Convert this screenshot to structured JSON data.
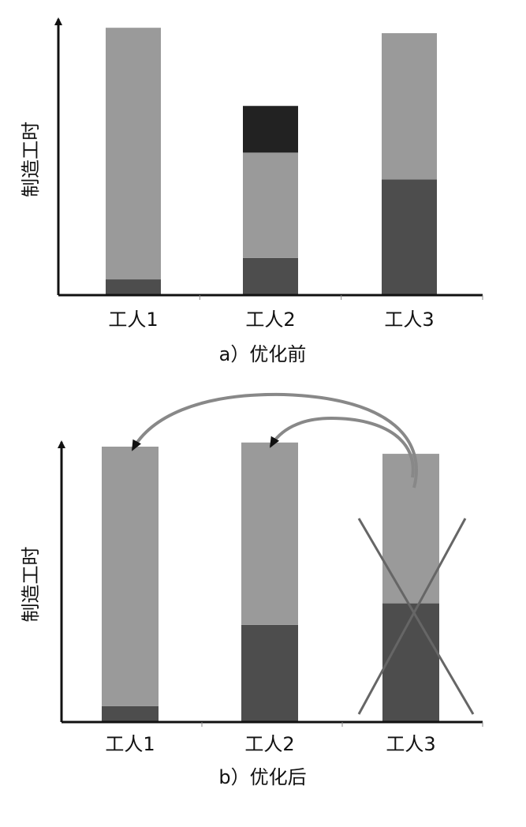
{
  "chart_data": [
    {
      "type": "stacked-bar",
      "title": "a）优化前",
      "y_label": "制造工时",
      "categories": [
        "工人1",
        "工人2",
        "工人3"
      ],
      "series": [
        {
          "color": "#4d4d4d",
          "values": [
            5.8,
            13.7,
            42.6
          ]
        },
        {
          "color": "#9a9a9a",
          "values": [
            92.7,
            38.8,
            53.9
          ]
        },
        {
          "color": "#222222",
          "values": [
            0,
            17.2,
            0
          ]
        }
      ],
      "ylim": [
        0,
        100
      ]
    },
    {
      "type": "stacked-bar",
      "title": "b）优化后",
      "y_label": "制造工时",
      "categories": [
        "工人1",
        "工人2",
        "工人3"
      ],
      "series": [
        {
          "color": "#4d4d4d",
          "values": [
            5.8,
            35.3,
            43.1
          ]
        },
        {
          "color": "#9a9a9a",
          "values": [
            94.2,
            66.2,
            54.3
          ]
        }
      ],
      "ylim": [
        0,
        100
      ]
    }
  ]
}
